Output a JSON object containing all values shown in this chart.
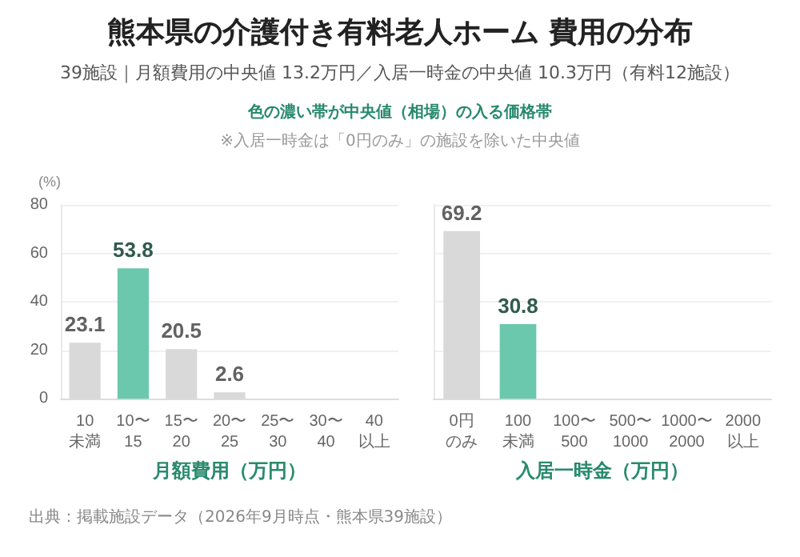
{
  "chart_data": [
    {
      "type": "bar",
      "title": "熊本県の介護付き有料老人ホーム 費用の分布",
      "subtitle": "39施設｜月額費用の中央値 13.2万円／入居一時金の中央値 10.3万円（有料12施設）",
      "annotations": [
        "色の濃い帯が中央値（相場）の入る価格帯",
        "※入居一時金は「0円のみ」の施設を除いた中央値",
        "出典：掲載施設データ（2026年9月時点・熊本県39施設）"
      ],
      "ylabel": "(%)",
      "xlabel": "月額費用（万円）",
      "categories": [
        "10\n未満",
        "10〜\n15",
        "15〜\n20",
        "20〜\n25",
        "25〜\n30",
        "30〜\n40",
        "40\n以上"
      ],
      "values": [
        23.1,
        53.8,
        20.5,
        2.6,
        0,
        0,
        0
      ],
      "value_labels": [
        "23.1",
        "53.8",
        "20.5",
        "2.6",
        null,
        null,
        null
      ],
      "colors": [
        "#d9d9d9",
        "#6cc8ad",
        "#d9d9d9",
        "#d9d9d9",
        "#d9d9d9",
        "#d9d9d9",
        "#d9d9d9"
      ],
      "ylim": [
        0,
        80
      ],
      "yticks": [
        0,
        20,
        40,
        60,
        80
      ],
      "grid": "y"
    },
    {
      "type": "bar",
      "xlabel": "入居一時金（万円）",
      "categories": [
        "0円のみ",
        "100\n未満",
        "100〜\n500",
        "500〜\n1000",
        "1000〜\n2000",
        "2000\n以上"
      ],
      "values": [
        69.2,
        30.8,
        0,
        0,
        0,
        0
      ],
      "value_labels": [
        "69.2",
        "30.8",
        null,
        null,
        null,
        null
      ],
      "colors": [
        "#d9d9d9",
        "#6cc8ad",
        "#d9d9d9",
        "#d9d9d9",
        "#d9d9d9",
        "#d9d9d9"
      ],
      "ylim": [
        0,
        80
      ],
      "yticks": [
        0,
        20,
        40,
        60,
        80
      ],
      "grid": "y",
      "tick_labels": "x"
    }
  ]
}
